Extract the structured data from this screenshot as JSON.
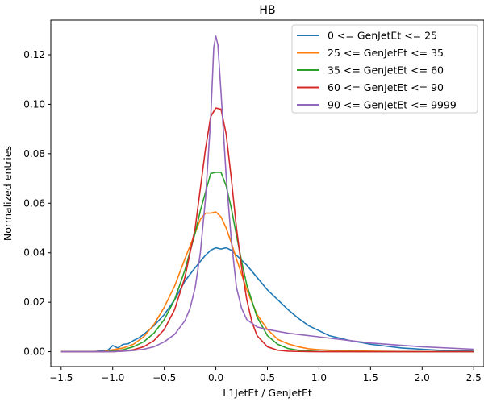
{
  "chart_data": {
    "type": "line",
    "title": "HB",
    "xlabel": "L1JetEt / GenJetEt",
    "ylabel": "Normalized entries",
    "xlim": [
      -1.6,
      2.6
    ],
    "ylim": [
      -0.006,
      0.134
    ],
    "xticks": [
      -1.5,
      -1.0,
      -0.5,
      0.0,
      0.5,
      1.0,
      1.5,
      2.0,
      2.5
    ],
    "xtick_labels": [
      "−1.5",
      "−1.0",
      "−0.5",
      "0.0",
      "0.5",
      "1.0",
      "1.5",
      "2.0",
      "2.5"
    ],
    "yticks": [
      0.0,
      0.02,
      0.04,
      0.06,
      0.08,
      0.1,
      0.12
    ],
    "ytick_labels": [
      "0.00",
      "0.02",
      "0.04",
      "0.06",
      "0.08",
      "0.10",
      "0.12"
    ],
    "grid": false,
    "legend_position": "top-right",
    "series": [
      {
        "name": "0 <= GenJetEt <= 25",
        "color": "#1f77b4",
        "x": [
          -1.5,
          -1.2,
          -1.05,
          -1.0,
          -0.95,
          -0.9,
          -0.85,
          -0.8,
          -0.75,
          -0.7,
          -0.6,
          -0.5,
          -0.4,
          -0.3,
          -0.2,
          -0.1,
          -0.05,
          0.0,
          0.05,
          0.1,
          0.15,
          0.2,
          0.3,
          0.4,
          0.5,
          0.6,
          0.7,
          0.8,
          0.9,
          1.0,
          1.1,
          1.2,
          1.3,
          1.4,
          1.5,
          1.6,
          1.8,
          2.0,
          2.2,
          2.5
        ],
        "y": [
          0.0,
          0.0,
          0.0005,
          0.0025,
          0.0015,
          0.003,
          0.0032,
          0.0045,
          0.0055,
          0.007,
          0.0105,
          0.015,
          0.021,
          0.0285,
          0.034,
          0.039,
          0.041,
          0.042,
          0.0415,
          0.042,
          0.041,
          0.039,
          0.035,
          0.03,
          0.025,
          0.021,
          0.017,
          0.0135,
          0.0105,
          0.0085,
          0.0065,
          0.0055,
          0.0045,
          0.0038,
          0.003,
          0.0025,
          0.0015,
          0.001,
          0.0005,
          0.0002
        ]
      },
      {
        "name": "25 <= GenJetEt <= 35",
        "color": "#ff7f0e",
        "x": [
          -1.5,
          -1.1,
          -1.0,
          -0.9,
          -0.8,
          -0.7,
          -0.6,
          -0.5,
          -0.4,
          -0.3,
          -0.2,
          -0.15,
          -0.1,
          -0.05,
          0.0,
          0.05,
          0.1,
          0.15,
          0.2,
          0.3,
          0.4,
          0.5,
          0.6,
          0.7,
          0.8,
          0.9,
          1.0,
          1.2,
          1.5,
          2.0,
          2.5
        ],
        "y": [
          0.0,
          0.0,
          0.0008,
          0.0015,
          0.003,
          0.006,
          0.011,
          0.018,
          0.0265,
          0.0375,
          0.048,
          0.0535,
          0.056,
          0.056,
          0.0565,
          0.0545,
          0.05,
          0.044,
          0.0375,
          0.025,
          0.015,
          0.009,
          0.005,
          0.0032,
          0.002,
          0.0012,
          0.0008,
          0.0004,
          0.0002,
          0.0,
          0.0
        ]
      },
      {
        "name": "35 <= GenJetEt <= 60",
        "color": "#2ca02c",
        "x": [
          -1.5,
          -1.1,
          -1.0,
          -0.9,
          -0.8,
          -0.7,
          -0.6,
          -0.5,
          -0.4,
          -0.3,
          -0.2,
          -0.15,
          -0.1,
          -0.05,
          0.0,
          0.05,
          0.1,
          0.15,
          0.2,
          0.25,
          0.3,
          0.4,
          0.5,
          0.6,
          0.7,
          0.8,
          0.9,
          1.0,
          1.5,
          2.5
        ],
        "y": [
          0.0,
          0.0,
          0.0003,
          0.0008,
          0.002,
          0.004,
          0.0075,
          0.013,
          0.021,
          0.033,
          0.048,
          0.057,
          0.0645,
          0.072,
          0.0725,
          0.0725,
          0.067,
          0.058,
          0.047,
          0.0365,
          0.027,
          0.014,
          0.0065,
          0.003,
          0.0013,
          0.0006,
          0.0003,
          0.0001,
          0.0,
          0.0
        ]
      },
      {
        "name": "60 <= GenJetEt <= 90",
        "color": "#d62728",
        "x": [
          -1.5,
          -1.0,
          -0.9,
          -0.8,
          -0.7,
          -0.6,
          -0.5,
          -0.4,
          -0.3,
          -0.2,
          -0.15,
          -0.1,
          -0.05,
          0.0,
          0.05,
          0.1,
          0.15,
          0.2,
          0.25,
          0.3,
          0.35,
          0.4,
          0.5,
          0.6,
          0.7,
          0.8,
          1.0,
          1.5,
          2.5
        ],
        "y": [
          0.0,
          0.0,
          0.0003,
          0.0008,
          0.002,
          0.0045,
          0.009,
          0.017,
          0.03,
          0.05,
          0.066,
          0.082,
          0.095,
          0.0985,
          0.098,
          0.088,
          0.07,
          0.05,
          0.034,
          0.021,
          0.012,
          0.0065,
          0.002,
          0.0006,
          0.0002,
          0.0001,
          0.0,
          0.0,
          0.0
        ]
      },
      {
        "name": "90 <= GenJetEt <= 9999",
        "color": "#9467bd",
        "x": [
          -1.5,
          -1.0,
          -0.9,
          -0.8,
          -0.7,
          -0.6,
          -0.5,
          -0.4,
          -0.3,
          -0.25,
          -0.2,
          -0.15,
          -0.1,
          -0.05,
          -0.02,
          0.0,
          0.02,
          0.05,
          0.1,
          0.15,
          0.2,
          0.25,
          0.3,
          0.4,
          0.5,
          0.7,
          1.0,
          1.5,
          2.0,
          2.5
        ],
        "y": [
          0.0,
          0.0,
          0.0002,
          0.0005,
          0.001,
          0.002,
          0.004,
          0.007,
          0.0125,
          0.0175,
          0.026,
          0.04,
          0.062,
          0.094,
          0.123,
          0.1275,
          0.124,
          0.105,
          0.071,
          0.045,
          0.026,
          0.0175,
          0.013,
          0.01,
          0.009,
          0.0075,
          0.006,
          0.0035,
          0.002,
          0.001
        ]
      }
    ]
  }
}
